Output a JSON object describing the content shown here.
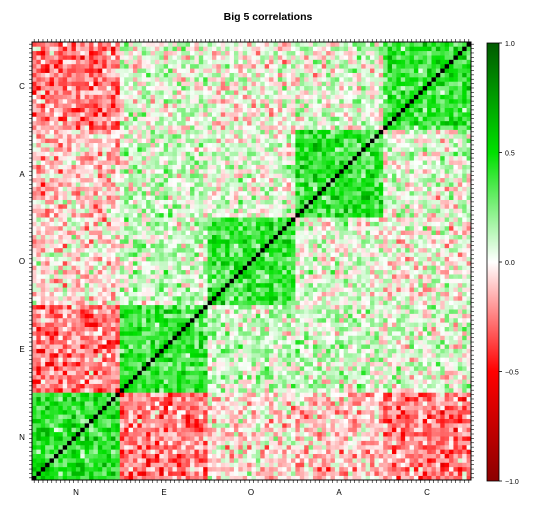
{
  "chart_data": {
    "type": "heatmap",
    "title": "Big 5 correlations",
    "xlabel": "",
    "ylabel": "",
    "x_group_labels": [
      "N",
      "E",
      "O",
      "A",
      "C"
    ],
    "y_group_labels": [
      "C",
      "A",
      "O",
      "E",
      "N"
    ],
    "items_per_group": 20,
    "within_group_correlation_approx": 0.4,
    "across_group_correlation_approx": {
      "N-E": -0.25,
      "N-O": -0.05,
      "N-A": -0.1,
      "N-C": -0.25,
      "E-O": 0.1,
      "E-A": 0.1,
      "E-C": 0.05,
      "O-A": 0.05,
      "O-C": 0.0,
      "A-C": 0.05
    },
    "diagonal": 1.0,
    "colorbar": {
      "ticks": [
        "1.0",
        "0.5",
        "0.0",
        "−0.5",
        "−1.0"
      ],
      "range": [
        -1,
        1
      ],
      "colors": {
        "low": "#8b0000",
        "mid_low": "#ff0000",
        "mid": "#ffffff",
        "mid_high": "#00e000",
        "high": "#005a00"
      }
    }
  }
}
